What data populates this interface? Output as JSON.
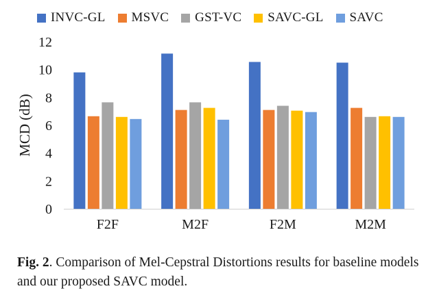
{
  "chart_data": {
    "type": "bar",
    "title": "",
    "xlabel": "",
    "ylabel": "MCD (dB)",
    "ylim": [
      0,
      12
    ],
    "yticks": [
      "0",
      "2",
      "4",
      "6",
      "8",
      "10",
      "12"
    ],
    "grid": false,
    "legend_position": "top",
    "categories": [
      "F2F",
      "M2F",
      "F2M",
      "M2M"
    ],
    "series": [
      {
        "name": "INVC-GL",
        "color": "#4472c4",
        "values": [
          9.8,
          11.15,
          10.55,
          10.5
        ]
      },
      {
        "name": "MSVC",
        "color": "#ed7d31",
        "values": [
          6.65,
          7.1,
          7.1,
          7.25
        ]
      },
      {
        "name": "GST-VC",
        "color": "#a5a5a5",
        "values": [
          7.65,
          7.65,
          7.4,
          6.6
        ]
      },
      {
        "name": "SAVC-GL",
        "color": "#ffc000",
        "values": [
          6.6,
          7.25,
          7.05,
          6.65
        ]
      },
      {
        "name": "SAVC",
        "color": "#6f9ede",
        "values": [
          6.45,
          6.4,
          6.95,
          6.6
        ]
      }
    ]
  },
  "caption": {
    "label": "Fig. 2",
    "text": ".  Comparison of Mel-Cepstral Distortions results for baseline models and our proposed SAVC model."
  }
}
